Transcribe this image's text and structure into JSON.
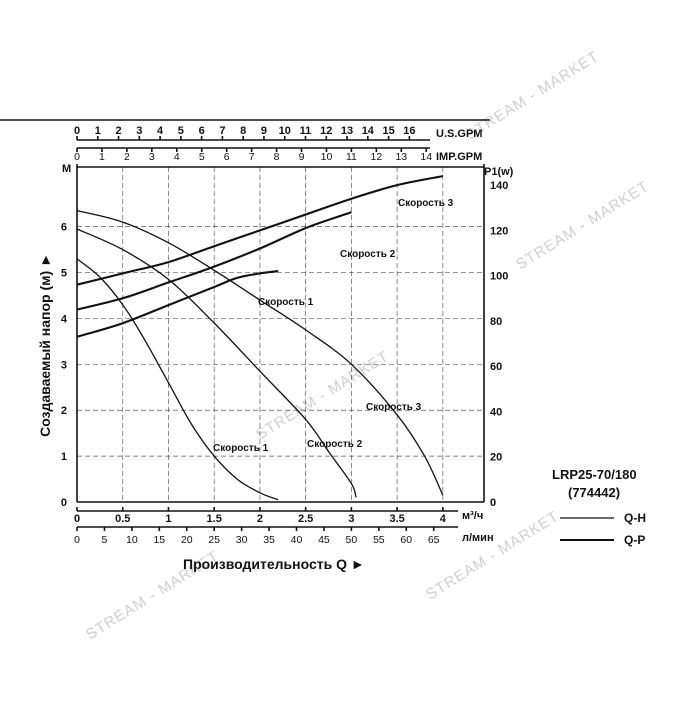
{
  "chart_data": {
    "type": "line",
    "model": "LRP25-70/180",
    "article": "(774442)",
    "watermark": "STREAM - MARKET",
    "y_left": {
      "label": "Создаваемый напор (м) ►",
      "unit": "М",
      "ticks": [
        0,
        1,
        2,
        3,
        4,
        5,
        6
      ],
      "range": [
        0,
        7.3
      ]
    },
    "y_right": {
      "unit": "P1(w)",
      "ticks": [
        0,
        20,
        40,
        60,
        80,
        100,
        120,
        140
      ],
      "range": [
        0,
        148
      ]
    },
    "x_axes": [
      {
        "unit": "U.S.GPM",
        "ticks": [
          "0",
          "1",
          "2",
          "3",
          "4",
          "5",
          "6",
          "7",
          "8",
          "9",
          "10",
          "11",
          "12",
          "13",
          "14",
          "15",
          "16"
        ],
        "values": [
          0,
          1,
          2,
          3,
          4,
          5,
          6,
          7,
          8,
          9,
          10,
          11,
          12,
          13,
          14,
          15,
          16
        ]
      },
      {
        "unit": "IMP.GPM",
        "ticks": [
          "0",
          "1",
          "2",
          "3",
          "4",
          "5",
          "6",
          "7",
          "8",
          "9",
          "10",
          "11",
          "12",
          "13",
          "14"
        ],
        "values": [
          0,
          1,
          2,
          3,
          4,
          5,
          6,
          7,
          8,
          9,
          10,
          11,
          12,
          13,
          14
        ]
      },
      {
        "unit": "м³/ч",
        "ticks": [
          "0",
          "0.5",
          "1",
          "1.5",
          "2",
          "2.5",
          "3",
          "3.5",
          "4"
        ],
        "values": [
          0,
          0.5,
          1,
          1.5,
          2,
          2.5,
          3,
          3.5,
          4
        ]
      },
      {
        "unit": "л/мин",
        "ticks": [
          "0",
          "5",
          "10",
          "15",
          "20",
          "25",
          "30",
          "35",
          "40",
          "45",
          "50",
          "55",
          "60",
          "65"
        ],
        "values": [
          0,
          5,
          10,
          15,
          20,
          25,
          30,
          35,
          40,
          45,
          50,
          55,
          60,
          65
        ]
      }
    ],
    "x_title": "Производительность Q ►",
    "x_range": [
      0,
      4.45
    ],
    "series": [
      {
        "name": "Скорость 1",
        "kind": "Q-H",
        "points": [
          [
            0,
            5.3
          ],
          [
            0.25,
            4.9
          ],
          [
            0.5,
            4.3
          ],
          [
            0.75,
            3.5
          ],
          [
            1.0,
            2.6
          ],
          [
            1.25,
            1.7
          ],
          [
            1.5,
            1.0
          ],
          [
            1.75,
            0.5
          ],
          [
            2.0,
            0.2
          ],
          [
            2.2,
            0.05
          ]
        ]
      },
      {
        "name": "Скорость 2",
        "kind": "Q-H",
        "points": [
          [
            0,
            5.95
          ],
          [
            0.5,
            5.5
          ],
          [
            1.0,
            4.85
          ],
          [
            1.5,
            3.9
          ],
          [
            2.0,
            2.85
          ],
          [
            2.5,
            1.8
          ],
          [
            2.75,
            1.1
          ],
          [
            3.0,
            0.4
          ],
          [
            3.05,
            0.1
          ]
        ]
      },
      {
        "name": "Скорость 3",
        "kind": "Q-H",
        "points": [
          [
            0,
            6.35
          ],
          [
            0.5,
            6.1
          ],
          [
            1.0,
            5.65
          ],
          [
            1.5,
            5.05
          ],
          [
            2.0,
            4.4
          ],
          [
            2.5,
            3.75
          ],
          [
            3.0,
            3.0
          ],
          [
            3.5,
            1.9
          ],
          [
            3.8,
            1.0
          ],
          [
            4.0,
            0.15
          ]
        ]
      },
      {
        "name": "Скорость 1",
        "kind": "Q-P",
        "points": [
          [
            0,
            73
          ],
          [
            0.5,
            79
          ],
          [
            1.0,
            87
          ],
          [
            1.5,
            95
          ],
          [
            1.75,
            99
          ],
          [
            2.0,
            101
          ],
          [
            2.2,
            102
          ]
        ]
      },
      {
        "name": "Скорость 2",
        "kind": "Q-P",
        "points": [
          [
            0,
            85
          ],
          [
            0.5,
            90
          ],
          [
            1.0,
            97
          ],
          [
            1.5,
            104
          ],
          [
            2.0,
            112
          ],
          [
            2.5,
            121
          ],
          [
            3.0,
            128
          ]
        ]
      },
      {
        "name": "Скорость 3",
        "kind": "Q-P",
        "points": [
          [
            0,
            96
          ],
          [
            0.5,
            101
          ],
          [
            1.0,
            106
          ],
          [
            1.5,
            113
          ],
          [
            2.0,
            120
          ],
          [
            2.5,
            127
          ],
          [
            3.0,
            134
          ],
          [
            3.5,
            140
          ],
          [
            4.0,
            144
          ]
        ]
      }
    ],
    "curve_labels": [
      {
        "text": "Скорость 3",
        "series": "Q-P 3"
      },
      {
        "text": "Скорость 2",
        "series": "Q-P 2"
      },
      {
        "text": "Скорость 1",
        "series": "Q-P 1"
      },
      {
        "text": "Скорость 3",
        "series": "Q-H 3"
      },
      {
        "text": "Скорость 2",
        "series": "Q-H 2"
      },
      {
        "text": "Скорость 1",
        "series": "Q-H 1"
      }
    ],
    "legend": [
      {
        "text": "Q-H"
      },
      {
        "text": "Q-P"
      }
    ],
    "grid": true
  }
}
